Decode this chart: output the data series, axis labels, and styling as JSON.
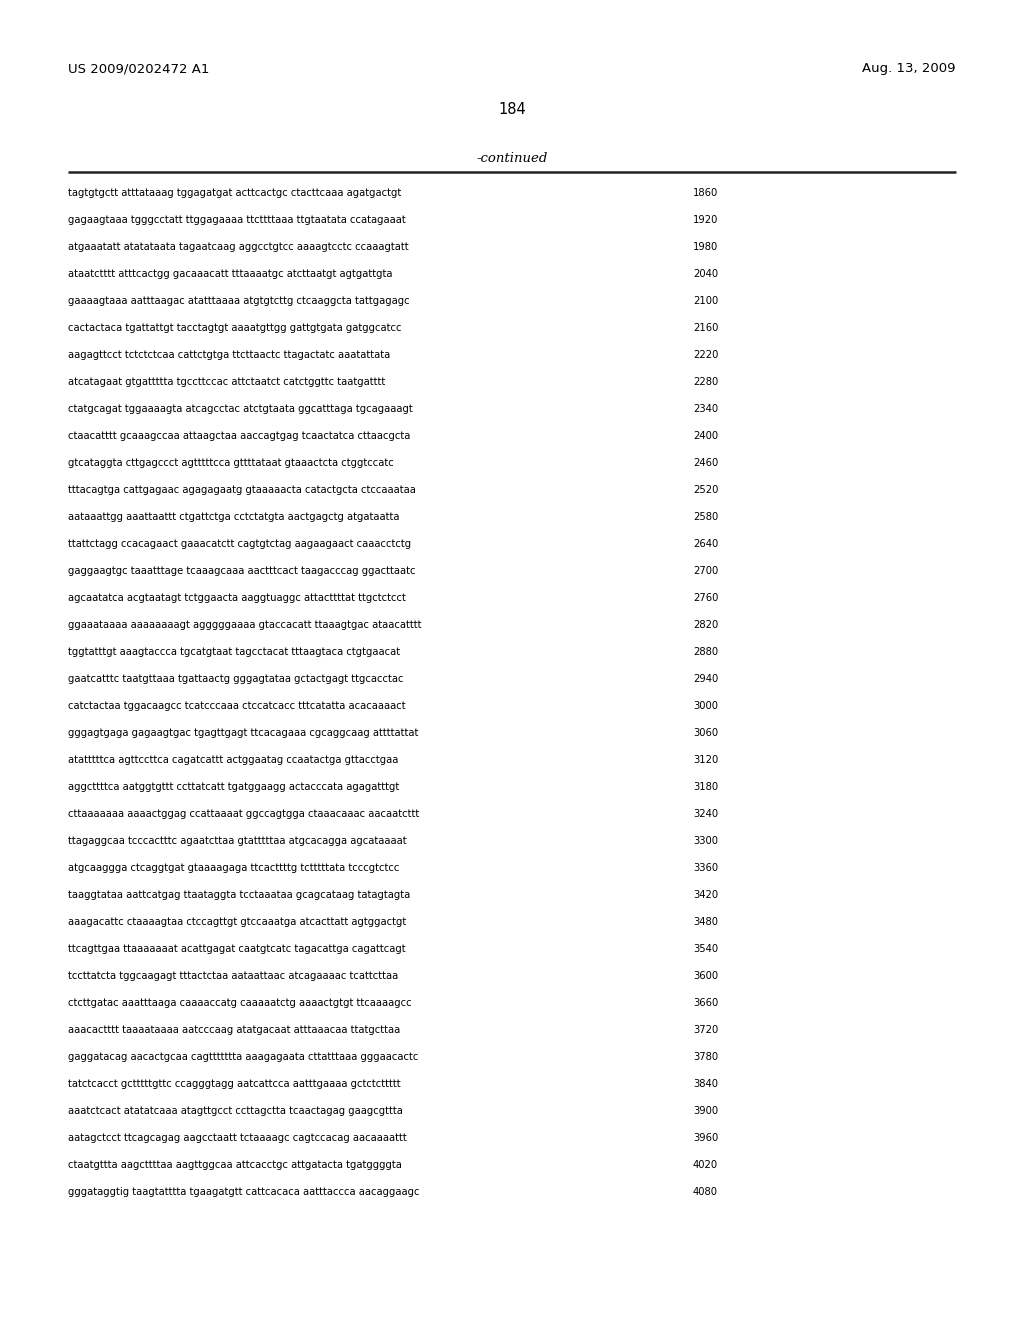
{
  "header_left": "US 2009/0202472 A1",
  "header_right": "Aug. 13, 2009",
  "page_number": "184",
  "continued_label": "-continued",
  "background_color": "#ffffff",
  "text_color": "#000000",
  "seq_font_size": 7.2,
  "header_font_size": 9.5,
  "page_num_font_size": 10.5,
  "continued_font_size": 9.5,
  "lines": [
    {
      "seq": "tagtgtgctt atttataaag tggagatgat acttcactgc ctacttcaaa agatgactgt",
      "num": "1860"
    },
    {
      "seq": "gagaagtaaa tgggcctatt ttggagaaaa ttcttttaaa ttgtaatata ccatagaaat",
      "num": "1920"
    },
    {
      "seq": "atgaaatatt atatataata tagaatcaag aggcctgtcc aaaagtcctc ccaaagtatt",
      "num": "1980"
    },
    {
      "seq": "ataatctttt atttcactgg gacaaacatt tttaaaatgc atcttaatgt agtgattgta",
      "num": "2040"
    },
    {
      "seq": "gaaaagtaaa aatttaagac atatttaaaa atgtgtcttg ctcaaggcta tattgagagc",
      "num": "2100"
    },
    {
      "seq": "cactactaca tgattattgt tacctagtgt aaaatgttgg gattgtgata gatggcatcc",
      "num": "2160"
    },
    {
      "seq": "aagagttcct tctctctcaa cattctgtga ttcttaactc ttagactatc aaatattata",
      "num": "2220"
    },
    {
      "seq": "atcatagaat gtgattttta tgccttccac attctaatct catctggttc taatgatttt",
      "num": "2280"
    },
    {
      "seq": "ctatgcagat tggaaaagta atcagcctac atctgtaata ggcatttaga tgcagaaagt",
      "num": "2340"
    },
    {
      "seq": "ctaacatttt gcaaagccaa attaagctaa aaccagtgag tcaactatca cttaacgcta",
      "num": "2400"
    },
    {
      "seq": "gtcataggta cttgagccct agtttttcca gttttataat gtaaactcta ctggtccatc",
      "num": "2460"
    },
    {
      "seq": "tttacagtga cattgagaac agagagaatg gtaaaaacta catactgcta ctccaaataa",
      "num": "2520"
    },
    {
      "seq": "aataaattgg aaattaattt ctgattctga cctctatgta aactgagctg atgataatta",
      "num": "2580"
    },
    {
      "seq": "ttattctagg ccacagaact gaaacatctt cagtgtctag aagaagaact caaacctctg",
      "num": "2640"
    },
    {
      "seq": "gaggaagtgc taaatttage tcaaagcaaa aactttcact taagacccag ggacttaatc",
      "num": "2700"
    },
    {
      "seq": "agcaatatca acgtaatagt tctggaacta aaggtuaggc attacttttat ttgctctcct",
      "num": "2760"
    },
    {
      "seq": "ggaaataaaa aaaaaaaagt agggggaaaa gtaccacatt ttaaagtgac ataacatttt",
      "num": "2820"
    },
    {
      "seq": "tggtatttgt aaagtaccca tgcatgtaat tagcctacat tttaagtaca ctgtgaacat",
      "num": "2880"
    },
    {
      "seq": "gaatcatttc taatgttaaa tgattaactg gggagtataa gctactgagt ttgcacctac",
      "num": "2940"
    },
    {
      "seq": "catctactaa tggacaagcc tcatcccaaa ctccatcacc tttcatatta acacaaaact",
      "num": "3000"
    },
    {
      "seq": "gggagtgaga gagaagtgac tgagttgagt ttcacagaaa cgcaggcaag attttattat",
      "num": "3060"
    },
    {
      "seq": "atatttttca agttccttca cagatcattt actggaatag ccaatactga gttacctgaa",
      "num": "3120"
    },
    {
      "seq": "aggcttttca aatggtgttt ccttatcatt tgatggaagg actacccata agagatttgt",
      "num": "3180"
    },
    {
      "seq": "cttaaaaaaa aaaactggag ccattaaaat ggccagtgga ctaaacaaac aacaatcttt",
      "num": "3240"
    },
    {
      "seq": "ttagaggcaa tcccactttc agaatcttaa gtatttttaa atgcacagga agcataaaat",
      "num": "3300"
    },
    {
      "seq": "atgcaaggga ctcaggtgat gtaaaagaga ttcacttttg tctttttata tcccgtctcc",
      "num": "3360"
    },
    {
      "seq": "taaggtataa aattcatgag ttaataggta tcctaaataa gcagcataag tatagtagta",
      "num": "3420"
    },
    {
      "seq": "aaagacattc ctaaaagtaa ctccagttgt gtccaaatga atcacttatt agtggactgt",
      "num": "3480"
    },
    {
      "seq": "ttcagttgaa ttaaaaaaat acattgagat caatgtcatc tagacattga cagattcagt",
      "num": "3540"
    },
    {
      "seq": "tccttatcta tggcaagagt tttactctaa aataattaac atcagaaaac tcattcttaa",
      "num": "3600"
    },
    {
      "seq": "ctcttgatac aaatttaaga caaaaccatg caaaaatctg aaaactgtgt ttcaaaagcc",
      "num": "3660"
    },
    {
      "seq": "aaacactttt taaaataaaa aatcccaag atatgacaat atttaaacaa ttatgcttaa",
      "num": "3720"
    },
    {
      "seq": "gaggatacag aacactgcaa cagttttttta aaagagaata cttatttaaa gggaacactc",
      "num": "3780"
    },
    {
      "seq": "tatctcacct gctttttgttc ccagggtagg aatcattcca aatttgaaaa gctctcttttt",
      "num": "3840"
    },
    {
      "seq": "aaatctcact atatatcaaa atagttgcct ccttagctta tcaactagag gaagcgttta",
      "num": "3900"
    },
    {
      "seq": "aatagctcct ttcagcagag aagcctaatt tctaaaagc cagtccacag aacaaaattt",
      "num": "3960"
    },
    {
      "seq": "ctaatgttta aagcttttaa aagttggcaa attcacctgc attgatacta tgatggggta",
      "num": "4020"
    },
    {
      "seq": "gggataggtig taagtatttta tgaagatgtt cattcacaca aatttaccca aacaggaagc",
      "num": "4080"
    }
  ]
}
